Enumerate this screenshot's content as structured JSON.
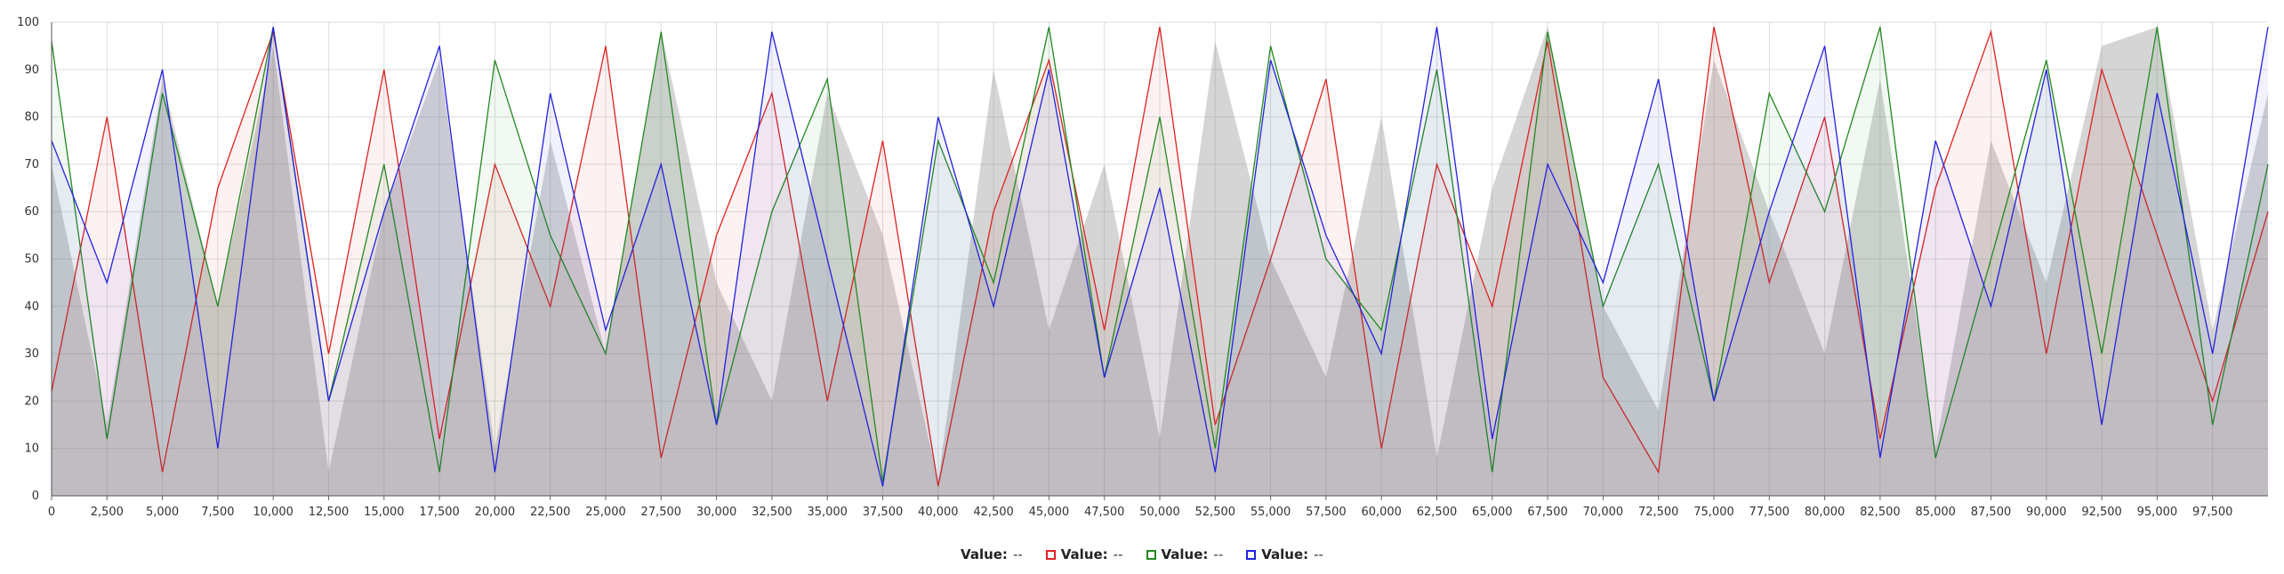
{
  "chart_data": {
    "type": "line",
    "title": "",
    "xlabel": "",
    "ylabel": "",
    "xlim": [
      0,
      100000
    ],
    "ylim": [
      0,
      100
    ],
    "x_ticks": [
      "0",
      "2,500",
      "5,000",
      "7,500",
      "10,000",
      "12,500",
      "15,000",
      "17,500",
      "20,000",
      "22,500",
      "25,000",
      "27,500",
      "30,000",
      "32,500",
      "35,000",
      "37,500",
      "40,000",
      "42,500",
      "45,000",
      "47,500",
      "50,000",
      "52,500",
      "55,000",
      "57,500",
      "60,000",
      "62,500",
      "65,000",
      "67,500",
      "70,000",
      "72,500",
      "75,000",
      "77,500",
      "80,000",
      "82,500",
      "85,000",
      "87,500",
      "90,000",
      "92,500",
      "95,000",
      "97,500"
    ],
    "y_ticks": [
      "0",
      "10",
      "20",
      "30",
      "40",
      "50",
      "60",
      "70",
      "80",
      "90",
      "100"
    ],
    "grid": true,
    "legend_position": "bottom-center",
    "series": [
      {
        "name": "Value",
        "color": "#888888",
        "style": "filled-area",
        "x": [
          0,
          2500,
          5000,
          7500,
          10000,
          12500,
          15000,
          17500,
          20000,
          22500,
          25000,
          27500,
          30000,
          32500,
          35000,
          37500,
          40000,
          42500,
          45000,
          47500,
          50000,
          52500,
          55000,
          57500,
          60000,
          62500,
          65000,
          67500,
          70000,
          72500,
          75000,
          77500,
          80000,
          82500,
          85000,
          87500,
          90000,
          92500,
          95000,
          97500,
          100000
        ],
        "values": [
          70,
          15,
          88,
          40,
          95,
          5,
          60,
          92,
          10,
          75,
          30,
          98,
          45,
          20,
          85,
          55,
          3,
          90,
          35,
          70,
          12,
          96,
          50,
          25,
          80,
          8,
          65,
          99,
          40,
          18,
          92,
          60,
          30,
          88,
          10,
          75,
          45,
          95,
          99,
          35,
          85
        ]
      },
      {
        "name": "Value",
        "color": "#dd2222",
        "style": "line",
        "x": [
          0,
          2500,
          5000,
          7500,
          10000,
          12500,
          15000,
          17500,
          20000,
          22500,
          25000,
          27500,
          30000,
          32500,
          35000,
          37500,
          40000,
          42500,
          45000,
          47500,
          50000,
          52500,
          55000,
          57500,
          60000,
          62500,
          65000,
          67500,
          70000,
          72500,
          75000,
          77500,
          80000,
          82500,
          85000,
          87500,
          90000,
          92500,
          95000,
          97500,
          100000
        ],
        "values": [
          22,
          80,
          5,
          65,
          98,
          30,
          90,
          12,
          70,
          40,
          95,
          8,
          55,
          85,
          20,
          75,
          2,
          60,
          92,
          35,
          99,
          15,
          50,
          88,
          10,
          70,
          40,
          96,
          25,
          5,
          99,
          45,
          80,
          12,
          65,
          98,
          30,
          90,
          55,
          20,
          60
        ]
      },
      {
        "name": "Value",
        "color": "#228822",
        "style": "line",
        "x": [
          0,
          2500,
          5000,
          7500,
          10000,
          12500,
          15000,
          17500,
          20000,
          22500,
          25000,
          27500,
          30000,
          32500,
          35000,
          37500,
          40000,
          42500,
          45000,
          47500,
          50000,
          52500,
          55000,
          57500,
          60000,
          62500,
          65000,
          67500,
          70000,
          72500,
          75000,
          77500,
          80000,
          82500,
          85000,
          87500,
          90000,
          92500,
          95000,
          97500,
          100000
        ],
        "values": [
          96,
          12,
          85,
          40,
          99,
          20,
          70,
          5,
          92,
          55,
          30,
          98,
          15,
          60,
          88,
          3,
          75,
          45,
          99,
          25,
          80,
          10,
          95,
          50,
          35,
          90,
          5,
          98,
          40,
          70,
          20,
          85,
          60,
          99,
          8,
          50,
          92,
          30,
          99,
          15,
          70
        ]
      },
      {
        "name": "Value",
        "color": "#2222dd",
        "style": "line",
        "x": [
          0,
          2500,
          5000,
          7500,
          10000,
          12500,
          15000,
          17500,
          20000,
          22500,
          25000,
          27500,
          30000,
          32500,
          35000,
          37500,
          40000,
          42500,
          45000,
          47500,
          50000,
          52500,
          55000,
          57500,
          60000,
          62500,
          65000,
          67500,
          70000,
          72500,
          75000,
          77500,
          80000,
          82500,
          85000,
          87500,
          90000,
          92500,
          95000,
          97500,
          100000
        ],
        "values": [
          75,
          45,
          90,
          10,
          99,
          20,
          60,
          95,
          5,
          85,
          35,
          70,
          15,
          98,
          50,
          2,
          80,
          40,
          90,
          25,
          65,
          5,
          92,
          55,
          30,
          99,
          12,
          70,
          45,
          88,
          20,
          60,
          95,
          8,
          75,
          40,
          90,
          15,
          85,
          30,
          99
        ]
      }
    ]
  },
  "legend": [
    {
      "label": "Value:",
      "value": "--",
      "color": ""
    },
    {
      "label": "Value:",
      "value": "--",
      "color": "#dd2222"
    },
    {
      "label": "Value:",
      "value": "--",
      "color": "#228822"
    },
    {
      "label": "Value:",
      "value": "--",
      "color": "#2222dd"
    }
  ]
}
